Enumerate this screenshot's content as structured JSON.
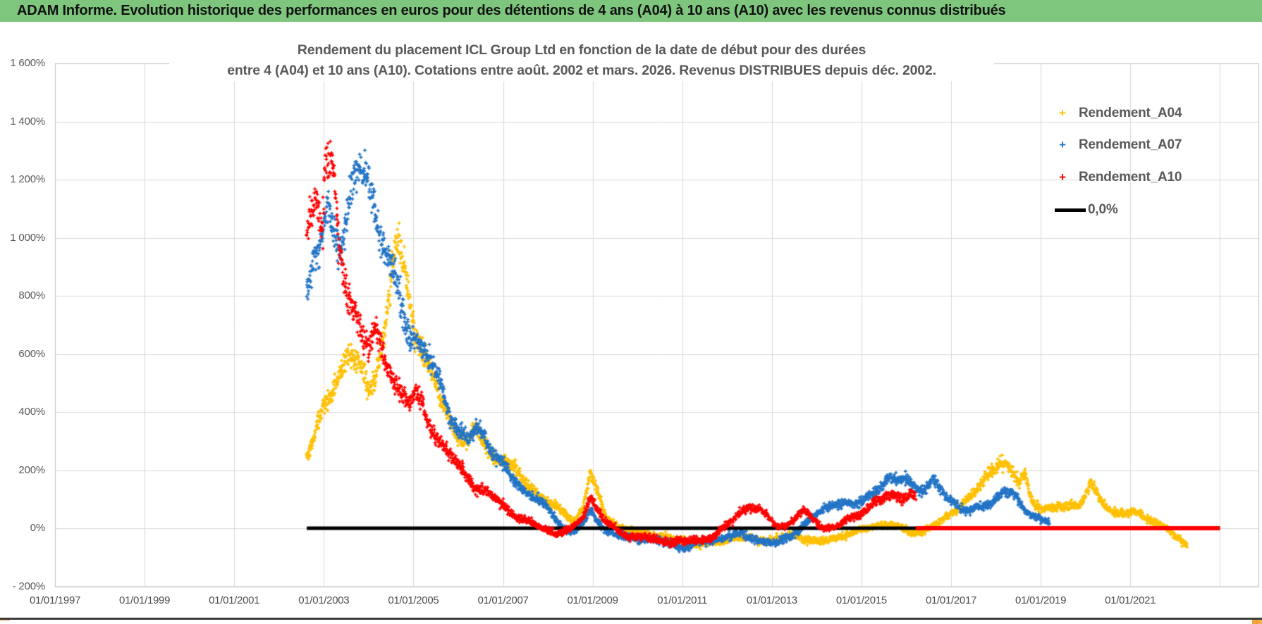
{
  "header": {
    "title": "ADAM Informe. Evolution historique des performances en euros pour des détentions de 4 ans (A04) à 10 ans (A10) avec les revenus connus distribués",
    "bg_color": "#7EC57E"
  },
  "handles": {
    "color": "#F0A33C"
  },
  "chart_data": {
    "type": "scatter",
    "title_line1": "Rendement du placement ICL Group Ltd en fonction de la date de début pour des durées",
    "title_line2": "entre 4 (A04) et 10 ans (A10). Cotations entre août. 2002 et mars. 2026. Revenus DISTRIBUES depuis déc. 2002.",
    "grid": true,
    "grid_color": "#D9D9D9",
    "plot_border_color": "#BFBFBF",
    "text_color": "#595959",
    "x_axis": {
      "tick_labels": [
        "01/01/1997",
        "01/01/1999",
        "01/01/2001",
        "01/01/2003",
        "01/01/2005",
        "01/01/2007",
        "01/01/2009",
        "01/01/2011",
        "01/01/2013",
        "01/01/2015",
        "01/01/2017",
        "01/01/2019",
        "01/01/2021"
      ],
      "tick_years": [
        1997,
        1999,
        2001,
        2003,
        2005,
        2007,
        2009,
        2011,
        2013,
        2015,
        2017,
        2019,
        2021
      ],
      "grid_years": [
        1997,
        1999,
        2001,
        2003,
        2005,
        2007,
        2009,
        2011,
        2013,
        2015,
        2017,
        2019,
        2021,
        2023
      ],
      "range_years": [
        1997,
        2023.87
      ]
    },
    "y_axis": {
      "ticks": [
        {
          "label": "1 600%",
          "value": 1600
        },
        {
          "label": "1 400%",
          "value": 1400
        },
        {
          "label": "1 200%",
          "value": 1200
        },
        {
          "label": "1 000%",
          "value": 1000
        },
        {
          "label": "800%",
          "value": 800
        },
        {
          "label": "600%",
          "value": 600
        },
        {
          "label": "400%",
          "value": 400
        },
        {
          "label": "200%",
          "value": 200
        },
        {
          "label": "0%",
          "value": 0
        },
        {
          "label": "- 200%",
          "value": -200
        }
      ],
      "range": [
        -200,
        1600
      ]
    },
    "legend": [
      {
        "label": "Rendement_A04",
        "color": "#FFC000",
        "marker": "plus"
      },
      {
        "label": "Rendement_A07",
        "color": "#2374C6",
        "marker": "plus"
      },
      {
        "label": "Rendement_A10",
        "color": "#FF0000",
        "marker": "plus"
      },
      {
        "label": "0,0%",
        "color": "#000000",
        "marker": "line"
      }
    ],
    "zero_line": {
      "value": 0,
      "color": "#000000",
      "start_year": 2002.62,
      "end_year": 2023.0
    },
    "series": [
      {
        "name": "Rendement_A04",
        "color": "#FFC000",
        "holding_years": 4,
        "anchors": [
          [
            2002.62,
            260
          ],
          [
            2002.8,
            330
          ],
          [
            2003.0,
            410
          ],
          [
            2003.2,
            490
          ],
          [
            2003.4,
            570
          ],
          [
            2003.55,
            630
          ],
          [
            2003.7,
            570
          ],
          [
            2003.85,
            510
          ],
          [
            2004.0,
            455
          ],
          [
            2004.15,
            530
          ],
          [
            2004.3,
            625
          ],
          [
            2004.45,
            770
          ],
          [
            2004.55,
            930
          ],
          [
            2004.65,
            965
          ],
          [
            2004.8,
            870
          ],
          [
            2004.95,
            760
          ],
          [
            2005.1,
            690
          ],
          [
            2005.25,
            620
          ],
          [
            2005.4,
            550
          ],
          [
            2005.55,
            470
          ],
          [
            2005.7,
            410
          ],
          [
            2005.85,
            360
          ],
          [
            2006.0,
            320
          ],
          [
            2006.2,
            290
          ],
          [
            2006.4,
            320
          ],
          [
            2006.6,
            280
          ],
          [
            2006.8,
            240
          ],
          [
            2007.0,
            250
          ],
          [
            2007.2,
            215
          ],
          [
            2007.4,
            180
          ],
          [
            2007.6,
            150
          ],
          [
            2007.8,
            120
          ],
          [
            2008.0,
            90
          ],
          [
            2008.3,
            55
          ],
          [
            2008.6,
            25
          ],
          [
            2008.8,
            70
          ],
          [
            2008.95,
            190
          ],
          [
            2009.1,
            120
          ],
          [
            2009.3,
            45
          ],
          [
            2009.6,
            5
          ],
          [
            2009.9,
            -10
          ],
          [
            2010.2,
            -20
          ],
          [
            2010.5,
            -30
          ],
          [
            2010.8,
            -40
          ],
          [
            2011.1,
            -45
          ],
          [
            2011.4,
            -55
          ],
          [
            2011.7,
            -45
          ],
          [
            2012.0,
            -35
          ],
          [
            2012.3,
            -30
          ],
          [
            2012.6,
            -40
          ],
          [
            2012.9,
            -45
          ],
          [
            2013.2,
            -35
          ],
          [
            2013.5,
            -25
          ],
          [
            2013.8,
            -35
          ],
          [
            2014.1,
            -45
          ],
          [
            2014.4,
            -35
          ],
          [
            2014.7,
            -20
          ],
          [
            2015.0,
            -10
          ],
          [
            2015.3,
            5
          ],
          [
            2015.6,
            15
          ],
          [
            2015.9,
            0
          ],
          [
            2016.2,
            -15
          ],
          [
            2016.5,
            0
          ],
          [
            2016.8,
            25
          ],
          [
            2017.1,
            60
          ],
          [
            2017.4,
            100
          ],
          [
            2017.7,
            150
          ],
          [
            2017.9,
            200
          ],
          [
            2018.1,
            245
          ],
          [
            2018.3,
            210
          ],
          [
            2018.5,
            160
          ],
          [
            2018.65,
            185
          ],
          [
            2018.8,
            100
          ],
          [
            2019.0,
            70
          ],
          [
            2019.3,
            60
          ],
          [
            2019.6,
            75
          ],
          [
            2019.9,
            85
          ],
          [
            2020.1,
            150
          ],
          [
            2020.25,
            120
          ],
          [
            2020.4,
            90
          ],
          [
            2020.6,
            65
          ],
          [
            2020.8,
            55
          ],
          [
            2021.0,
            50
          ],
          [
            2021.2,
            45
          ],
          [
            2021.5,
            25
          ],
          [
            2021.8,
            0
          ],
          [
            2022.0,
            -30
          ],
          [
            2022.27,
            -55
          ]
        ]
      },
      {
        "name": "Rendement_A07",
        "color": "#2374C6",
        "holding_years": 7,
        "anchors": [
          [
            2002.62,
            800
          ],
          [
            2002.75,
            870
          ],
          [
            2002.9,
            960
          ],
          [
            2003.0,
            1060
          ],
          [
            2003.1,
            1120
          ],
          [
            2003.25,
            1010
          ],
          [
            2003.4,
            960
          ],
          [
            2003.55,
            1060
          ],
          [
            2003.7,
            1140
          ],
          [
            2003.85,
            1220
          ],
          [
            2003.95,
            1275
          ],
          [
            2004.05,
            1180
          ],
          [
            2004.2,
            1080
          ],
          [
            2004.35,
            980
          ],
          [
            2004.5,
            900
          ],
          [
            2004.65,
            820
          ],
          [
            2004.8,
            750
          ],
          [
            2004.95,
            690
          ],
          [
            2005.1,
            640
          ],
          [
            2005.25,
            590
          ],
          [
            2005.4,
            545
          ],
          [
            2005.55,
            500
          ],
          [
            2005.7,
            440
          ],
          [
            2005.85,
            380
          ],
          [
            2006.0,
            330
          ],
          [
            2006.2,
            300
          ],
          [
            2006.4,
            350
          ],
          [
            2006.6,
            330
          ],
          [
            2006.8,
            270
          ],
          [
            2007.0,
            215
          ],
          [
            2007.2,
            170
          ],
          [
            2007.4,
            135
          ],
          [
            2007.6,
            115
          ],
          [
            2007.8,
            95
          ],
          [
            2008.0,
            60
          ],
          [
            2008.2,
            25
          ],
          [
            2008.5,
            -15
          ],
          [
            2008.8,
            20
          ],
          [
            2008.95,
            60
          ],
          [
            2009.1,
            30
          ],
          [
            2009.3,
            -5
          ],
          [
            2009.6,
            -30
          ],
          [
            2009.9,
            -40
          ],
          [
            2010.2,
            -35
          ],
          [
            2010.5,
            -45
          ],
          [
            2010.8,
            -55
          ],
          [
            2011.1,
            -60
          ],
          [
            2011.4,
            -50
          ],
          [
            2011.7,
            -40
          ],
          [
            2012.0,
            -30
          ],
          [
            2012.3,
            -25
          ],
          [
            2012.6,
            -35
          ],
          [
            2012.9,
            -45
          ],
          [
            2013.1,
            -50
          ],
          [
            2013.3,
            -35
          ],
          [
            2013.6,
            -5
          ],
          [
            2013.9,
            35
          ],
          [
            2014.2,
            65
          ],
          [
            2014.5,
            90
          ],
          [
            2014.8,
            75
          ],
          [
            2015.0,
            95
          ],
          [
            2015.2,
            120
          ],
          [
            2015.4,
            150
          ],
          [
            2015.6,
            170
          ],
          [
            2015.8,
            160
          ],
          [
            2016.0,
            175
          ],
          [
            2016.2,
            140
          ],
          [
            2016.4,
            120
          ],
          [
            2016.6,
            150
          ],
          [
            2016.8,
            130
          ],
          [
            2017.0,
            100
          ],
          [
            2017.2,
            75
          ],
          [
            2017.4,
            60
          ],
          [
            2017.6,
            75
          ],
          [
            2017.8,
            90
          ],
          [
            2018.0,
            105
          ],
          [
            2018.2,
            120
          ],
          [
            2018.4,
            110
          ],
          [
            2018.6,
            70
          ],
          [
            2018.8,
            45
          ],
          [
            2019.0,
            30
          ],
          [
            2019.2,
            15
          ]
        ]
      },
      {
        "name": "Rendement_A10",
        "color": "#FF0000",
        "holding_years": 10,
        "flat_zero_from": 2016.21,
        "flat_zero_to": 2023.0,
        "anchors": [
          [
            2002.62,
            1000
          ],
          [
            2002.75,
            1120
          ],
          [
            2002.87,
            1180
          ],
          [
            2002.95,
            1060
          ],
          [
            2003.05,
            1390
          ],
          [
            2003.15,
            1300
          ],
          [
            2003.25,
            1130
          ],
          [
            2003.35,
            950
          ],
          [
            2003.45,
            860
          ],
          [
            2003.55,
            790
          ],
          [
            2003.7,
            770
          ],
          [
            2003.85,
            680
          ],
          [
            2004.0,
            620
          ],
          [
            2004.15,
            640
          ],
          [
            2004.3,
            580
          ],
          [
            2004.5,
            530
          ],
          [
            2004.7,
            480
          ],
          [
            2004.9,
            440
          ],
          [
            2005.1,
            450
          ],
          [
            2005.3,
            400
          ],
          [
            2005.5,
            340
          ],
          [
            2005.7,
            280
          ],
          [
            2005.9,
            230
          ],
          [
            2006.1,
            190
          ],
          [
            2006.4,
            140
          ],
          [
            2006.7,
            110
          ],
          [
            2007.0,
            80
          ],
          [
            2007.3,
            45
          ],
          [
            2007.6,
            20
          ],
          [
            2007.9,
            0
          ],
          [
            2008.2,
            -20
          ],
          [
            2008.5,
            -10
          ],
          [
            2008.8,
            40
          ],
          [
            2008.95,
            110
          ],
          [
            2009.1,
            70
          ],
          [
            2009.3,
            20
          ],
          [
            2009.6,
            -10
          ],
          [
            2009.9,
            -25
          ],
          [
            2010.2,
            -35
          ],
          [
            2010.5,
            -45
          ],
          [
            2010.8,
            -50
          ],
          [
            2011.1,
            -50
          ],
          [
            2011.4,
            -40
          ],
          [
            2011.7,
            -25
          ],
          [
            2012.0,
            10
          ],
          [
            2012.3,
            60
          ],
          [
            2012.5,
            75
          ],
          [
            2012.7,
            60
          ],
          [
            2012.9,
            35
          ],
          [
            2013.1,
            10
          ],
          [
            2013.3,
            5
          ],
          [
            2013.5,
            30
          ],
          [
            2013.7,
            60
          ],
          [
            2013.9,
            40
          ],
          [
            2014.1,
            10
          ],
          [
            2014.3,
            0
          ],
          [
            2014.5,
            10
          ],
          [
            2014.7,
            30
          ],
          [
            2014.9,
            45
          ],
          [
            2015.1,
            60
          ],
          [
            2015.3,
            80
          ],
          [
            2015.5,
            100
          ],
          [
            2015.7,
            120
          ],
          [
            2015.9,
            110
          ],
          [
            2016.1,
            120
          ],
          [
            2016.21,
            100
          ]
        ]
      }
    ]
  }
}
